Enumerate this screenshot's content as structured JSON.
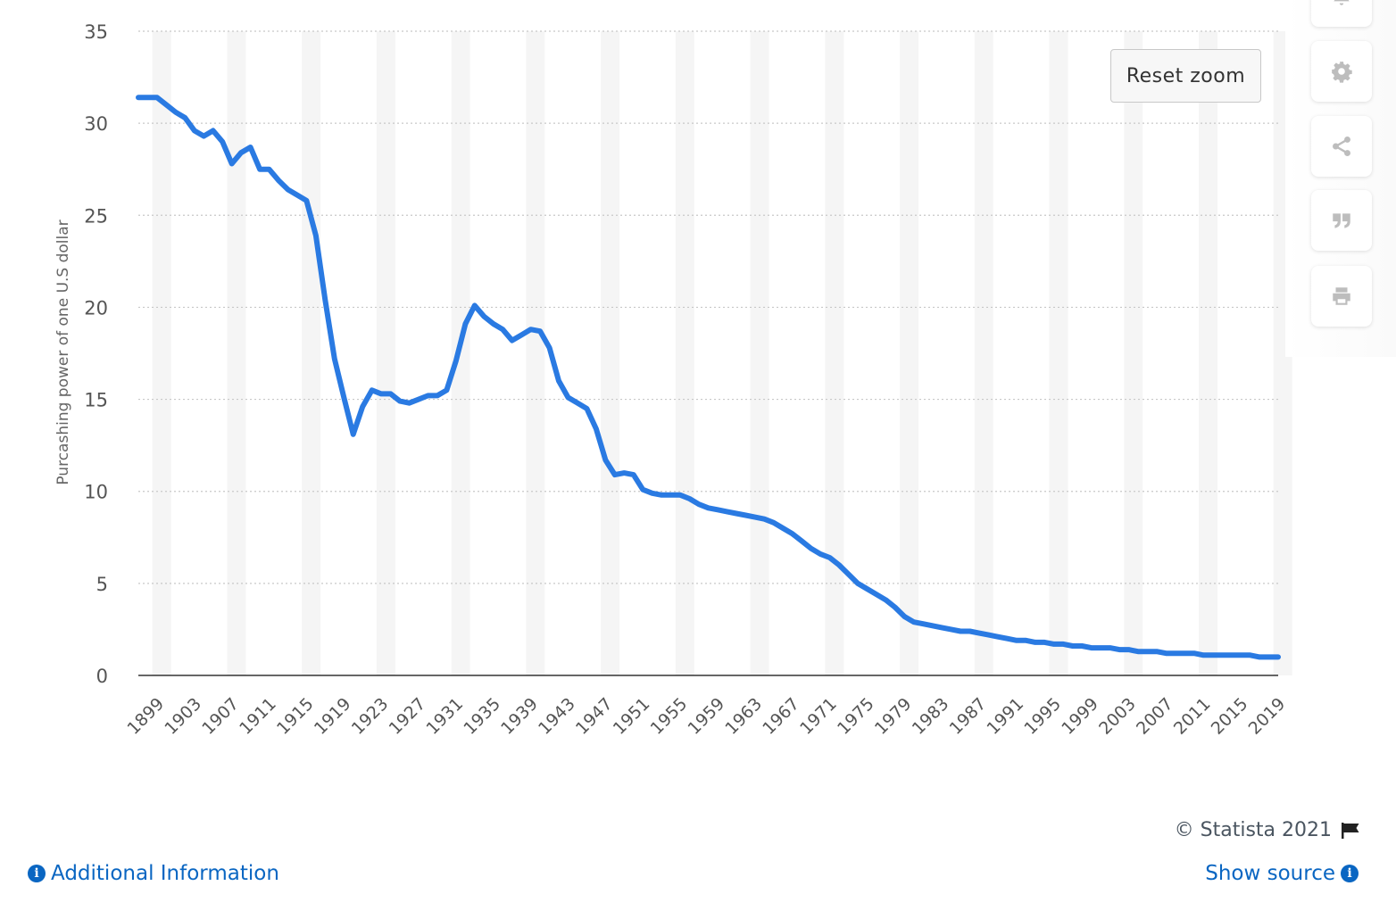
{
  "chart_data": {
    "type": "line",
    "title": "",
    "xlabel": "",
    "ylabel": "Purcashing power of one U.S dollar",
    "x_tick_labels": [
      "1899",
      "1903",
      "1907",
      "1911",
      "1915",
      "1919",
      "1923",
      "1927",
      "1931",
      "1935",
      "1939",
      "1943",
      "1947",
      "1951",
      "1955",
      "1959",
      "1963",
      "1967",
      "1971",
      "1975",
      "1979",
      "1983",
      "1987",
      "1991",
      "1995",
      "1999",
      "2003",
      "2007",
      "2011",
      "2015",
      "2019"
    ],
    "y_ticks": [
      0,
      5,
      10,
      15,
      20,
      25,
      30,
      35
    ],
    "xlim": [
      1898,
      2020
    ],
    "ylim": [
      0,
      35
    ],
    "grid": "dotted horizontal lines, alternating vertical bands",
    "series": [
      {
        "color": "#2a7ae2",
        "x": [
          1898,
          1899,
          1900,
          1901,
          1902,
          1903,
          1904,
          1905,
          1906,
          1907,
          1908,
          1909,
          1910,
          1911,
          1912,
          1913,
          1914,
          1915,
          1916,
          1917,
          1918,
          1919,
          1920,
          1921,
          1922,
          1923,
          1924,
          1925,
          1926,
          1927,
          1928,
          1929,
          1930,
          1931,
          1932,
          1933,
          1934,
          1935,
          1936,
          1937,
          1938,
          1939,
          1940,
          1941,
          1942,
          1943,
          1944,
          1945,
          1946,
          1947,
          1948,
          1949,
          1950,
          1951,
          1952,
          1953,
          1954,
          1955,
          1956,
          1957,
          1958,
          1959,
          1960,
          1961,
          1962,
          1963,
          1964,
          1965,
          1966,
          1967,
          1968,
          1969,
          1970,
          1971,
          1972,
          1973,
          1974,
          1975,
          1976,
          1977,
          1978,
          1979,
          1980,
          1981,
          1982,
          1983,
          1984,
          1985,
          1986,
          1987,
          1988,
          1989,
          1990,
          1991,
          1992,
          1993,
          1994,
          1995,
          1996,
          1997,
          1998,
          1999,
          2000,
          2001,
          2002,
          2003,
          2004,
          2005,
          2006,
          2007,
          2008,
          2009,
          2010,
          2011,
          2012,
          2013,
          2014,
          2015,
          2016,
          2017,
          2018,
          2019,
          2020
        ],
        "values": [
          31.4,
          31.4,
          31.4,
          31.0,
          30.6,
          30.3,
          29.6,
          29.3,
          29.6,
          29.0,
          27.8,
          28.4,
          28.7,
          27.5,
          27.5,
          26.9,
          26.4,
          26.1,
          25.8,
          23.9,
          20.4,
          17.2,
          15.1,
          13.1,
          14.6,
          15.5,
          15.3,
          15.3,
          14.9,
          14.8,
          15.0,
          15.2,
          15.2,
          15.5,
          17.1,
          19.1,
          20.1,
          19.5,
          19.1,
          18.8,
          18.2,
          18.5,
          18.8,
          18.7,
          17.8,
          16.0,
          15.1,
          14.8,
          14.5,
          13.4,
          11.7,
          10.9,
          11.0,
          10.9,
          10.1,
          9.9,
          9.8,
          9.8,
          9.8,
          9.6,
          9.3,
          9.1,
          9.0,
          8.9,
          8.8,
          8.7,
          8.6,
          8.5,
          8.3,
          8.0,
          7.7,
          7.3,
          6.9,
          6.6,
          6.4,
          6.0,
          5.5,
          5.0,
          4.7,
          4.4,
          4.1,
          3.7,
          3.2,
          2.9,
          2.8,
          2.7,
          2.6,
          2.5,
          2.4,
          2.4,
          2.3,
          2.2,
          2.1,
          2.0,
          1.9,
          1.9,
          1.8,
          1.8,
          1.7,
          1.7,
          1.6,
          1.6,
          1.5,
          1.5,
          1.5,
          1.4,
          1.4,
          1.3,
          1.3,
          1.3,
          1.2,
          1.2,
          1.2,
          1.2,
          1.1,
          1.1,
          1.1,
          1.1,
          1.1,
          1.1,
          1.0,
          1.0,
          1.0
        ]
      }
    ]
  },
  "buttons": {
    "reset_zoom": "Reset zoom"
  },
  "toolbar": {
    "icons": [
      "bell-icon",
      "gear-icon",
      "share-icon",
      "quote-icon",
      "print-icon"
    ],
    "icon_color": "#bdbdbd"
  },
  "footer": {
    "copyright": "© Statista 2021",
    "additional_info": "Additional Information",
    "show_source": "Show source"
  },
  "colors": {
    "line": "#2a7ae2",
    "link": "#0a66c2",
    "band": "#f5f5f5",
    "grid": "#c8c8c8"
  }
}
